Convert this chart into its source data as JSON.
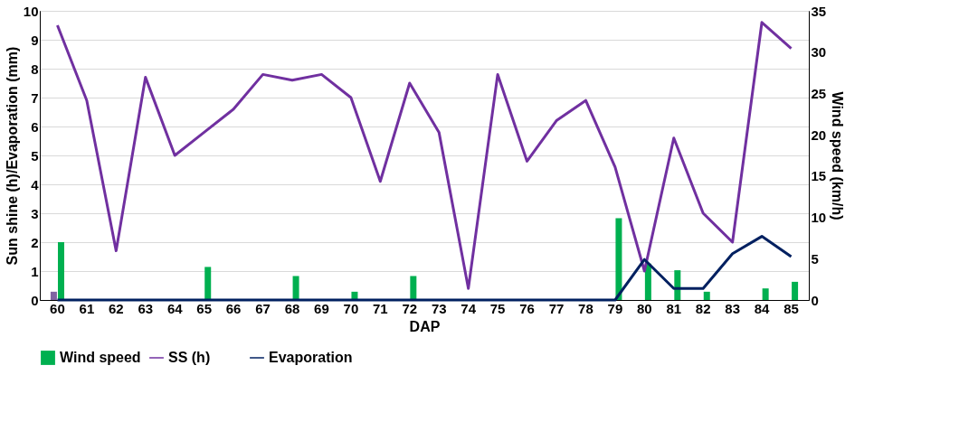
{
  "chart_data": {
    "type": "line",
    "xlabel": "DAP",
    "ylabel": "Sun shine  (h)/Evaporation  (mm)",
    "y2label": "Wind speed (km/h)",
    "categories": [
      "60",
      "61",
      "62",
      "63",
      "64",
      "65",
      "66",
      "67",
      "68",
      "69",
      "70",
      "71",
      "72",
      "73",
      "74",
      "75",
      "76",
      "77",
      "78",
      "79",
      "80",
      "81",
      "82",
      "83",
      "84",
      "85"
    ],
    "series": [
      {
        "type": "bar",
        "axis": "y2",
        "color": "#8064a2",
        "values": [
          1.0,
          null,
          null,
          null,
          null,
          null,
          null,
          null,
          null,
          null,
          null,
          null,
          null,
          null,
          null,
          null,
          null,
          null,
          null,
          null,
          null,
          null,
          null,
          null,
          null,
          null
        ]
      },
      {
        "type": "bar",
        "axis": "y2",
        "name": "Wind speed",
        "color": "#00b050",
        "values": [
          7.0,
          0,
          0,
          0,
          0,
          4.0,
          0,
          0,
          2.9,
          0,
          1.0,
          0,
          2.9,
          0,
          0,
          0,
          0,
          0,
          0,
          9.9,
          4.4,
          3.6,
          1.0,
          0,
          1.4,
          2.2
        ]
      },
      {
        "name": "SS (h)",
        "color": "#7030a0",
        "values": [
          9.5,
          6.9,
          1.7,
          7.7,
          5.0,
          5.8,
          6.6,
          7.8,
          7.6,
          7.8,
          7.0,
          4.1,
          7.5,
          5.8,
          0.4,
          7.8,
          4.8,
          6.2,
          6.9,
          4.6,
          1.0,
          5.6,
          3.0,
          2.0,
          9.6,
          8.7
        ]
      },
      {
        "name": "Evaporation",
        "color": "#002060",
        "values": [
          0,
          0,
          0,
          0,
          0,
          0,
          0,
          0,
          0,
          0,
          0,
          0,
          0,
          0,
          0,
          0,
          0,
          0,
          0,
          0,
          1.4,
          0.4,
          0.4,
          1.6,
          2.2,
          1.5
        ]
      }
    ],
    "ylim": [
      0,
      10
    ],
    "yticks": [
      0,
      1,
      2,
      3,
      4,
      5,
      6,
      7,
      8,
      9,
      10
    ],
    "y2lim": [
      0,
      35
    ],
    "y2ticks": [
      0,
      5,
      10,
      15,
      20,
      25,
      30,
      35
    ],
    "grid": "y",
    "legend": "bottom",
    "line_style": "solid",
    "marker": "none"
  }
}
